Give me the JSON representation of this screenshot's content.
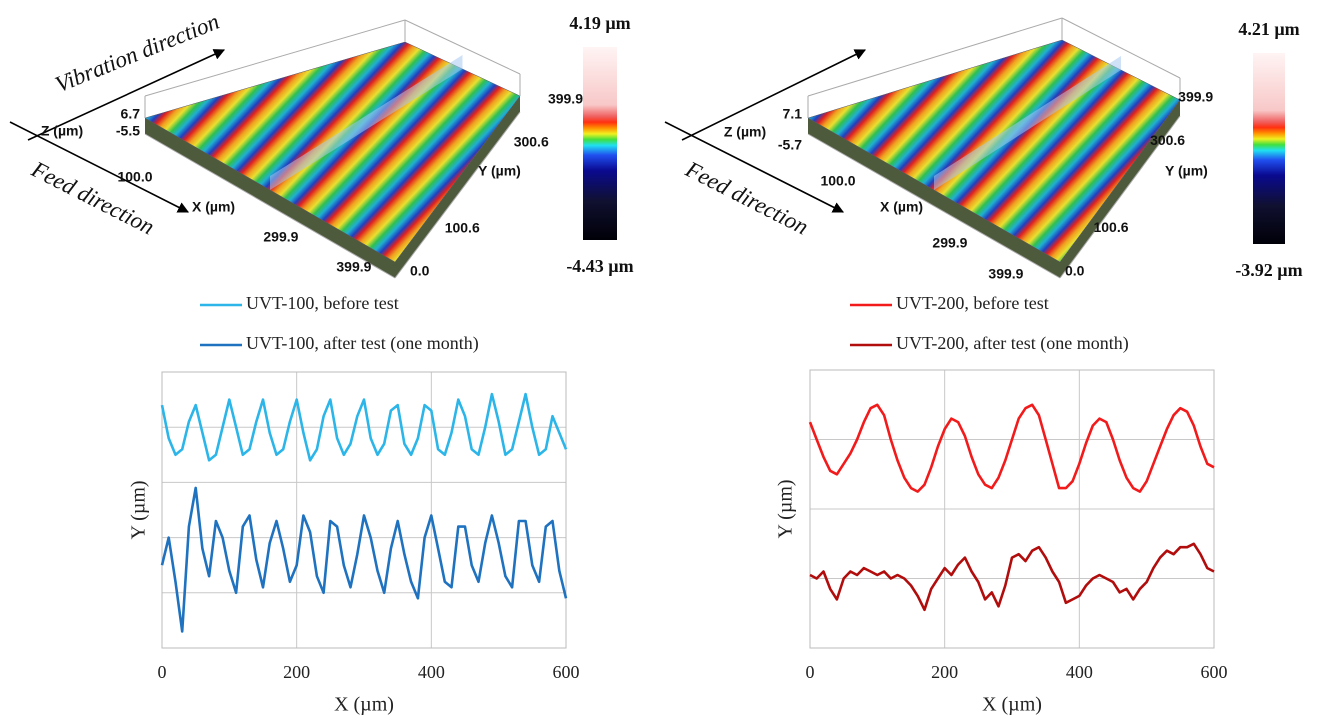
{
  "chart_data": [
    {
      "type": "surface",
      "vibration_label": "Vibration direction",
      "feed_label": "Feed direction",
      "xlabel": "X (µm)",
      "ylabel": "Y (µm)",
      "zlabel": "Z (µm)",
      "xlim": [
        0,
        399.9
      ],
      "xticks": [
        {
          "value": 100,
          "label": "100.0"
        },
        299.9,
        399.9
      ],
      "ylim": [
        0,
        399.9
      ],
      "yticks": [
        {
          "value": 0,
          "label": "0.0"
        },
        100.6,
        300.6,
        399.9
      ],
      "zticks": [
        6.7,
        -5.5
      ],
      "colorbar_ticks": [
        {
          "value": 4.19,
          "label": "4.19 µm"
        },
        {
          "value": -4.43,
          "label": "-4.43 µm"
        }
      ]
    },
    {
      "type": "surface",
      "feed_label": "Feed direction",
      "xlabel": "X (µm)",
      "ylabel": "Y (µm)",
      "zlabel": "Z (µm)",
      "xlim": [
        0,
        399.9
      ],
      "xticks": [
        {
          "value": 100,
          "label": "100.0"
        },
        299.9,
        399.9
      ],
      "ylim": [
        0,
        399.9
      ],
      "yticks": [
        {
          "value": 0,
          "label": "0.0"
        },
        100.6,
        300.6,
        399.9
      ],
      "zticks": [
        7.1,
        -5.7
      ],
      "colorbar_ticks": [
        {
          "value": 4.21,
          "label": "4.21 µm"
        },
        {
          "value": -3.92,
          "label": "-3.92 µm"
        }
      ]
    },
    {
      "type": "line",
      "xlabel": "X (µm)",
      "ylabel": "Y (µm)",
      "xlim": [
        0,
        600
      ],
      "xticks": [
        0,
        200,
        400,
        600
      ],
      "ylim": [
        0,
        5
      ],
      "yticks": [
        0,
        1,
        2,
        3,
        4,
        5
      ],
      "ytick_labels": false,
      "grid": true,
      "legend": "top",
      "x": [
        0,
        10,
        20,
        30,
        40,
        50,
        60,
        70,
        80,
        90,
        100,
        110,
        120,
        130,
        140,
        150,
        160,
        170,
        180,
        190,
        200,
        210,
        220,
        230,
        240,
        250,
        260,
        270,
        280,
        290,
        300,
        310,
        320,
        330,
        340,
        350,
        360,
        370,
        380,
        390,
        400,
        410,
        420,
        430,
        440,
        450,
        460,
        470,
        480,
        490,
        500,
        510,
        520,
        530,
        540,
        550,
        560,
        570,
        580,
        590,
        600
      ],
      "series": [
        {
          "name": "UVT-100, before test",
          "color": "#2bb5e8",
          "values": [
            4.4,
            3.8,
            3.5,
            3.6,
            4.1,
            4.4,
            3.9,
            3.4,
            3.5,
            4.0,
            4.5,
            4.0,
            3.5,
            3.6,
            4.1,
            4.5,
            3.9,
            3.5,
            3.6,
            4.1,
            4.5,
            3.9,
            3.4,
            3.6,
            4.2,
            4.5,
            3.8,
            3.5,
            3.7,
            4.2,
            4.5,
            3.8,
            3.5,
            3.7,
            4.3,
            4.4,
            3.7,
            3.5,
            3.8,
            4.4,
            4.3,
            3.6,
            3.5,
            3.9,
            4.5,
            4.2,
            3.6,
            3.5,
            4.0,
            4.6,
            4.1,
            3.5,
            3.6,
            4.1,
            4.6,
            4.0,
            3.5,
            3.6,
            4.2,
            3.9,
            3.6
          ]
        },
        {
          "name": "UVT-100, after test (one month)",
          "color": "#1f72bf",
          "values": [
            1.5,
            2.0,
            1.2,
            0.3,
            2.2,
            2.9,
            1.8,
            1.3,
            2.3,
            2.0,
            1.4,
            1.0,
            2.2,
            2.4,
            1.6,
            1.1,
            1.9,
            2.3,
            1.8,
            1.2,
            1.5,
            2.4,
            2.1,
            1.3,
            1.0,
            2.3,
            2.2,
            1.5,
            1.1,
            1.7,
            2.4,
            2.0,
            1.4,
            1.0,
            1.8,
            2.3,
            1.7,
            1.2,
            0.9,
            2.0,
            2.4,
            1.8,
            1.2,
            1.1,
            2.2,
            2.2,
            1.5,
            1.2,
            1.9,
            2.4,
            1.9,
            1.3,
            1.1,
            2.3,
            2.3,
            1.5,
            1.2,
            2.2,
            2.3,
            1.4,
            0.9
          ]
        }
      ]
    },
    {
      "type": "line",
      "xlabel": "X (µm)",
      "ylabel": "Y (µm)",
      "xlim": [
        0,
        600
      ],
      "xticks": [
        0,
        200,
        400,
        600
      ],
      "ylim": [
        0,
        4
      ],
      "yticks": [
        0,
        1,
        2,
        3,
        4
      ],
      "ytick_labels": false,
      "grid": true,
      "legend": "top",
      "x": [
        0,
        10,
        20,
        30,
        40,
        50,
        60,
        70,
        80,
        90,
        100,
        110,
        120,
        130,
        140,
        150,
        160,
        170,
        180,
        190,
        200,
        210,
        220,
        230,
        240,
        250,
        260,
        270,
        280,
        290,
        300,
        310,
        320,
        330,
        340,
        350,
        360,
        370,
        380,
        390,
        400,
        410,
        420,
        430,
        440,
        450,
        460,
        470,
        480,
        490,
        500,
        510,
        520,
        530,
        540,
        550,
        560,
        570,
        580,
        590,
        600
      ],
      "series": [
        {
          "name": "UVT-200, before test",
          "color": "#f21a1a",
          "values": [
            3.25,
            3.0,
            2.75,
            2.55,
            2.5,
            2.65,
            2.8,
            3.0,
            3.25,
            3.45,
            3.5,
            3.35,
            3.0,
            2.7,
            2.45,
            2.3,
            2.25,
            2.35,
            2.6,
            2.9,
            3.15,
            3.3,
            3.25,
            3.05,
            2.75,
            2.5,
            2.35,
            2.3,
            2.45,
            2.7,
            3.0,
            3.3,
            3.45,
            3.5,
            3.35,
            3.0,
            2.65,
            2.3,
            2.3,
            2.4,
            2.65,
            2.95,
            3.2,
            3.3,
            3.25,
            3.0,
            2.7,
            2.45,
            2.3,
            2.25,
            2.4,
            2.65,
            2.9,
            3.15,
            3.35,
            3.45,
            3.4,
            3.2,
            2.9,
            2.65,
            2.6
          ]
        },
        {
          "name": "UVT-200, after test (one month)",
          "color": "#b20d0d",
          "values": [
            1.05,
            1.0,
            1.1,
            0.85,
            0.7,
            1.0,
            1.1,
            1.05,
            1.15,
            1.1,
            1.05,
            1.1,
            1.0,
            1.05,
            1.0,
            0.9,
            0.75,
            0.55,
            0.85,
            1.0,
            1.15,
            1.05,
            1.2,
            1.3,
            1.1,
            0.95,
            0.7,
            0.8,
            0.6,
            0.9,
            1.3,
            1.35,
            1.25,
            1.4,
            1.45,
            1.3,
            1.1,
            0.95,
            0.65,
            0.7,
            0.75,
            0.9,
            1.0,
            1.05,
            1.0,
            0.95,
            0.8,
            0.85,
            0.7,
            0.85,
            0.95,
            1.15,
            1.3,
            1.4,
            1.35,
            1.45,
            1.45,
            1.5,
            1.35,
            1.15,
            1.1
          ]
        }
      ]
    }
  ]
}
